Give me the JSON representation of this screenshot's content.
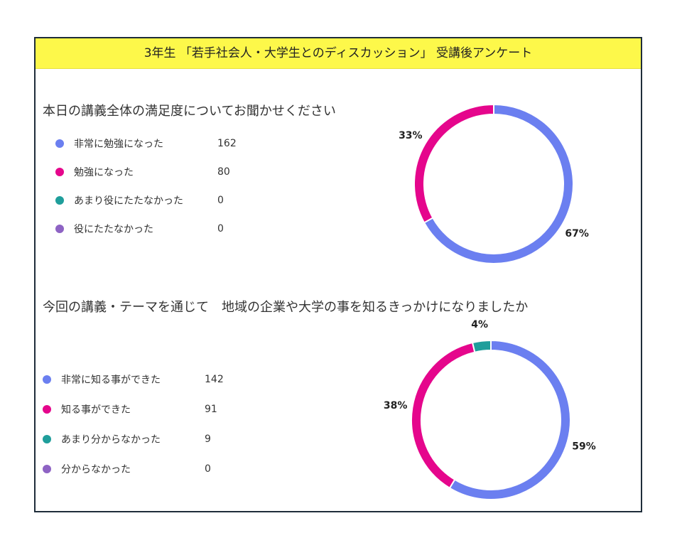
{
  "title": "3年生 「若手社会人・大学生とのディスカッション」 受講後アンケート",
  "colors": {
    "series1": "#6b7ff0",
    "series2": "#e5068c",
    "series3": "#1f9e9b",
    "series4": "#8e63c4"
  },
  "chart_data": [
    {
      "type": "pie",
      "title": "本日の講義全体の満足度についてお聞かせください",
      "categories": [
        "非常に勉強になった",
        "勉強になった",
        "あまり役にたたなかった",
        "役にたたなかった"
      ],
      "values": [
        162,
        80,
        0,
        0
      ],
      "percent_labels": [
        "67%",
        "33%",
        "",
        ""
      ],
      "legend": "left"
    },
    {
      "type": "pie",
      "title": "今回の講義・テーマを通じて　地域の企業や大学の事を知るきっかけになりましたか",
      "categories": [
        "非常に知る事ができた",
        "知る事ができた",
        "あまり分からなかった",
        "分からなかった"
      ],
      "values": [
        142,
        91,
        9,
        0
      ],
      "percent_labels": [
        "59%",
        "38%",
        "4%",
        ""
      ],
      "legend": "left"
    }
  ]
}
